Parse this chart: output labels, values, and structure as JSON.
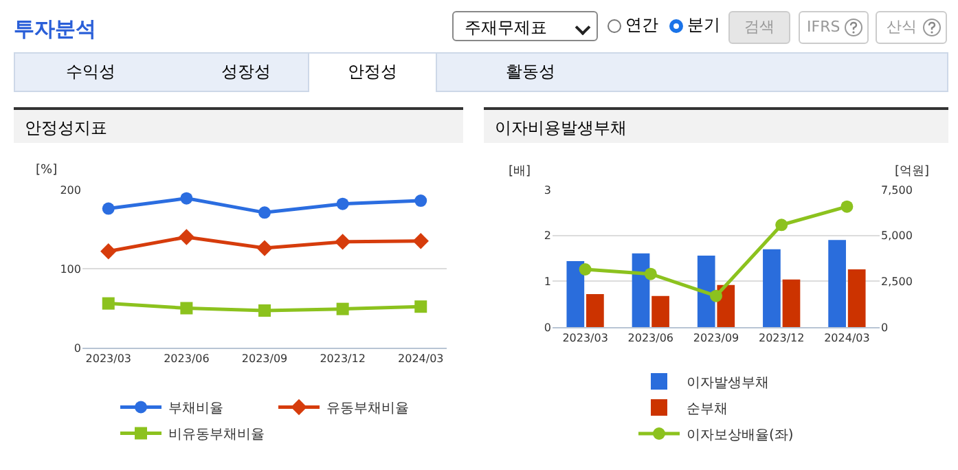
{
  "chart_data": [
    {
      "type": "other",
      "title": "투자분석",
      "annotations": [
        "주재무제표",
        "연간",
        "분기",
        "검색",
        "IFRS",
        "산식",
        "수익성",
        "성장성",
        "안정성",
        "활동성"
      ]
    },
    {
      "type": "line",
      "title": "안정성지표",
      "ylabel": "[%]",
      "categories": [
        "2023/03",
        "2023/06",
        "2023/09",
        "2023/12",
        "2024/03"
      ],
      "ylim": [
        0,
        200
      ],
      "yticks": [
        0,
        100,
        200
      ],
      "grid": "y",
      "legend": "bottom",
      "series": [
        {
          "name": "부채비율",
          "color": "#2b6de0",
          "marker": "circle",
          "values": [
            176,
            189,
            171,
            182,
            186
          ]
        },
        {
          "name": "유동부채비율",
          "color": "#d63c0c",
          "marker": "diamond",
          "values": [
            122,
            140,
            126,
            134,
            135
          ]
        },
        {
          "name": "비유동부채비율",
          "color": "#8cc21e",
          "marker": "square",
          "values": [
            56,
            50,
            47,
            49,
            52
          ]
        }
      ]
    },
    {
      "type": "bar",
      "title": "이자비용발생부채",
      "ylabel": "[배]",
      "y2label": "[억원]",
      "categories": [
        "2023/03",
        "2023/06",
        "2023/09",
        "2023/12",
        "2024/03"
      ],
      "ylim": [
        0,
        3
      ],
      "yticks": [
        0,
        1,
        2,
        3
      ],
      "y2lim": [
        0,
        7500
      ],
      "y2ticks": [
        0,
        {
          "value": 2500,
          "label": "2,500"
        },
        {
          "value": 5000,
          "label": "5,000"
        },
        {
          "value": 7500,
          "label": "7,500"
        }
      ],
      "grid": "y",
      "legend": "bottom",
      "series": [
        {
          "name": "이자발생부채",
          "color": "#2a6ddc",
          "axis": "y2",
          "values": [
            3600,
            4020,
            3900,
            4250,
            4750
          ]
        },
        {
          "name": "순부채",
          "color": "#cc3300",
          "axis": "y2",
          "values": [
            1800,
            1700,
            2300,
            2600,
            3150
          ]
        },
        {
          "name": "이자보상배율(좌)",
          "type": "line",
          "marker": "circle",
          "color": "#8cc21e",
          "values": [
            1.26,
            1.16,
            0.68,
            2.23,
            2.63
          ]
        }
      ]
    }
  ]
}
